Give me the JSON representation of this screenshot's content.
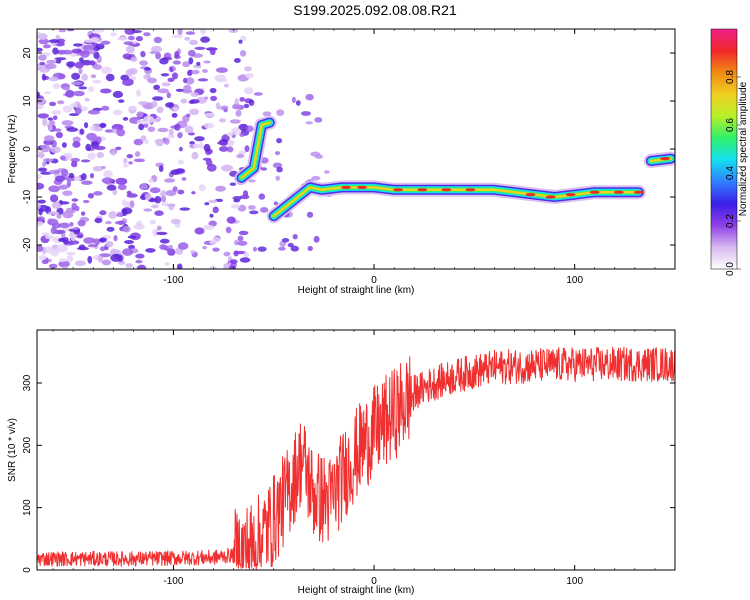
{
  "title": "S199.2025.092.08.08.R21",
  "chart_data": [
    {
      "type": "heatmap",
      "xlabel": "Height of straight line (km)",
      "ylabel": "Frequency (Hz)",
      "xlim": [
        -168,
        150
      ],
      "ylim": [
        -25,
        25
      ],
      "xticks": [
        -100,
        0,
        100
      ],
      "yticks": [
        -20,
        -10,
        0,
        10,
        20
      ],
      "colorbar": {
        "label": "Normalized spectral amplitude",
        "range": [
          0.0,
          1.0
        ],
        "ticks": [
          "0.0",
          "0.2",
          "0.4",
          "0.6",
          "0.8"
        ],
        "colors": [
          "#ffffff",
          "#d8b8f0",
          "#8f3fe8",
          "#3b1fe8",
          "#2f7fff",
          "#14e0f0",
          "#2ef06a",
          "#b6f02a",
          "#f0d020",
          "#f08a14",
          "#f02828",
          "#f0208c"
        ]
      },
      "noise_region": {
        "x": [
          -168,
          -62
        ],
        "y": [
          -25,
          25
        ]
      },
      "ridge": [
        {
          "x": -66,
          "y": -6
        },
        {
          "x": -60,
          "y": -4
        },
        {
          "x": -56,
          "y": 5
        },
        {
          "x": -52,
          "y": 5.5
        },
        {
          "x": -50,
          "y": -14
        },
        {
          "x": -44,
          "y": -12
        },
        {
          "x": -38,
          "y": -10
        },
        {
          "x": -32,
          "y": -8
        },
        {
          "x": -26,
          "y": -8.5
        },
        {
          "x": -16,
          "y": -8
        },
        {
          "x": -8,
          "y": -8
        },
        {
          "x": 0,
          "y": -8
        },
        {
          "x": 10,
          "y": -8.5
        },
        {
          "x": 20,
          "y": -8.5
        },
        {
          "x": 30,
          "y": -8.5
        },
        {
          "x": 40,
          "y": -8.5
        },
        {
          "x": 50,
          "y": -8.5
        },
        {
          "x": 60,
          "y": -8.5
        },
        {
          "x": 70,
          "y": -9
        },
        {
          "x": 80,
          "y": -9.5
        },
        {
          "x": 90,
          "y": -10
        },
        {
          "x": 100,
          "y": -9.5
        },
        {
          "x": 110,
          "y": -9
        },
        {
          "x": 120,
          "y": -9
        },
        {
          "x": 132,
          "y": -9
        },
        {
          "x": 138,
          "y": -2.5
        },
        {
          "x": 148,
          "y": -2
        }
      ]
    },
    {
      "type": "line",
      "xlabel": "Height of straight line (km)",
      "ylabel": "SNR (10 * v/v)",
      "xlim": [
        -168,
        150
      ],
      "ylim": [
        0,
        385
      ],
      "xticks": [
        -100,
        0,
        100
      ],
      "yticks": [
        0,
        100,
        200,
        300
      ],
      "color": "#f03030",
      "trend": [
        {
          "x": -168,
          "y": 18
        },
        {
          "x": -120,
          "y": 18
        },
        {
          "x": -80,
          "y": 20
        },
        {
          "x": -68,
          "y": 25
        },
        {
          "x": -58,
          "y": 45
        },
        {
          "x": -50,
          "y": 80
        },
        {
          "x": -42,
          "y": 130
        },
        {
          "x": -36,
          "y": 180
        },
        {
          "x": -30,
          "y": 120
        },
        {
          "x": -22,
          "y": 110
        },
        {
          "x": -14,
          "y": 160
        },
        {
          "x": -6,
          "y": 200
        },
        {
          "x": 0,
          "y": 220
        },
        {
          "x": 10,
          "y": 250
        },
        {
          "x": 20,
          "y": 285
        },
        {
          "x": 30,
          "y": 300
        },
        {
          "x": 45,
          "y": 315
        },
        {
          "x": 60,
          "y": 325
        },
        {
          "x": 80,
          "y": 328
        },
        {
          "x": 100,
          "y": 330
        },
        {
          "x": 130,
          "y": 330
        },
        {
          "x": 150,
          "y": 330
        }
      ]
    }
  ]
}
